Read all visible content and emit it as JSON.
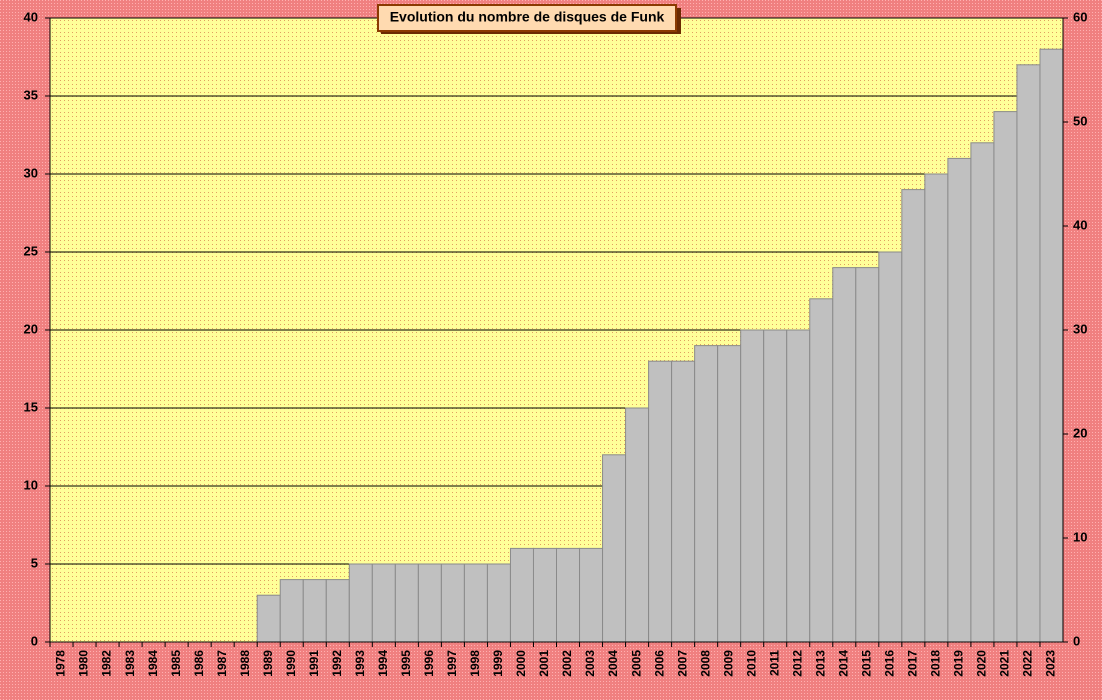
{
  "chart_data": {
    "type": "bar",
    "title": "Evolution du nombre de disques de Funk",
    "categories": [
      "1978",
      "1980",
      "1982",
      "1983",
      "1984",
      "1985",
      "1986",
      "1987",
      "1988",
      "1989",
      "1990",
      "1991",
      "1992",
      "1993",
      "1994",
      "1995",
      "1996",
      "1997",
      "1998",
      "1999",
      "2000",
      "2001",
      "2002",
      "2003",
      "2004",
      "2005",
      "2006",
      "2007",
      "2008",
      "2009",
      "2010",
      "2011",
      "2012",
      "2013",
      "2014",
      "2015",
      "2016",
      "2017",
      "2018",
      "2019",
      "2020",
      "2021",
      "2022",
      "2023"
    ],
    "values": [
      0,
      0,
      0,
      0,
      0,
      0,
      0,
      0,
      0,
      3,
      4,
      4,
      4,
      5,
      5,
      5,
      5,
      5,
      5,
      5,
      6,
      6,
      6,
      6,
      12,
      15,
      18,
      18,
      19,
      19,
      20,
      20,
      20,
      22,
      24,
      24,
      25,
      29,
      30,
      31,
      32,
      34,
      37,
      38
    ],
    "color": "#c0c0c0",
    "ylim": [
      0,
      40
    ],
    "yticks": [
      0,
      5,
      10,
      15,
      20,
      25,
      30,
      35,
      40
    ],
    "y2lim": [
      0,
      60
    ],
    "y2ticks": [
      0,
      10,
      20,
      30,
      40,
      50,
      60
    ],
    "grid": true
  }
}
